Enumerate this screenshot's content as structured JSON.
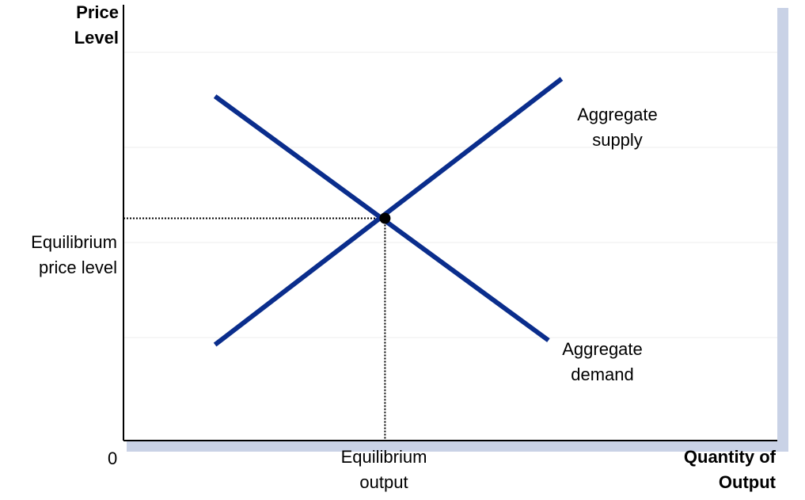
{
  "y_axis_label": [
    "Price",
    "Level"
  ],
  "x_axis_label": [
    "Quantity of",
    "Output"
  ],
  "origin_label": "0",
  "equilibrium_price_label": [
    "Equilibrium",
    "price level"
  ],
  "equilibrium_output_label": [
    "Equilibrium",
    "output"
  ],
  "supply_label": [
    "Aggregate",
    "supply"
  ],
  "demand_label": [
    "Aggregate",
    "demand"
  ],
  "colors": {
    "curve": "#0a2d8c",
    "axis": "#000000",
    "shadow": "#c9d2e6",
    "gridline": "#eeeeee"
  },
  "chart_data": {
    "type": "line",
    "title": "",
    "xlabel": "Quantity of Output",
    "ylabel": "Price Level",
    "series": [
      {
        "name": "Aggregate supply",
        "x": [
          0.14,
          0.67
        ],
        "y": [
          0.22,
          0.83
        ]
      },
      {
        "name": "Aggregate demand",
        "x": [
          0.14,
          0.65
        ],
        "y": [
          0.79,
          0.23
        ]
      }
    ],
    "equilibrium": {
      "x": 0.4,
      "y": 0.51
    },
    "xlim": [
      0,
      1
    ],
    "ylim": [
      0,
      1
    ],
    "grid": true
  }
}
